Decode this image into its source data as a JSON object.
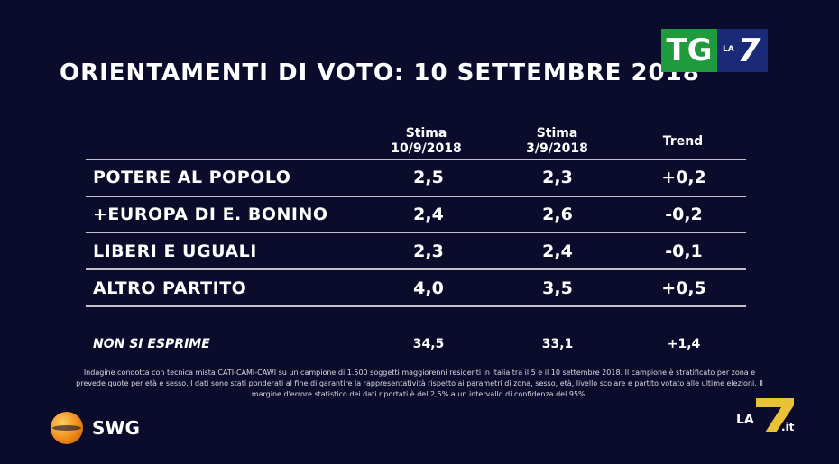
{
  "title": "ORIENTAMENTI DI VOTO: 10 SETTEMBRE 2018",
  "logo_top": {
    "tg": "TG",
    "la": "LA",
    "seven": "7"
  },
  "chart_data": {
    "type": "table",
    "columns": [
      {
        "line1": "Stima",
        "line2": "10/9/2018"
      },
      {
        "line1": "Stima",
        "line2": "3/9/2018"
      },
      {
        "line1": "",
        "line2": "Trend"
      }
    ],
    "rows": [
      {
        "label": "POTERE AL POPOLO",
        "stima1": "2,5",
        "stima2": "2,3",
        "trend": "+0,2"
      },
      {
        "label": "+EUROPA DI E. BONINO",
        "stima1": "2,4",
        "stima2": "2,6",
        "trend": "-0,2"
      },
      {
        "label": "LIBERI E UGUALI",
        "stima1": "2,3",
        "stima2": "2,4",
        "trend": "-0,1"
      },
      {
        "label": "ALTRO PARTITO",
        "stima1": "4,0",
        "stima2": "3,5",
        "trend": "+0,5"
      }
    ],
    "non_si_esprime": {
      "label": "NON SI ESPRIME",
      "stima1": "34,5",
      "stima2": "33,1",
      "trend": "+1,4"
    }
  },
  "note": "Indagine condotta con tecnica mista CATI-CAMI-CAWI su un campione di 1.500 soggetti maggiorenni residenti in Italia tra il 5 e il 10 settembre 2018. Il campione è stratificato per zona e prevede quote per età e sesso. I dati sono stati ponderati al fine di garantire la rappresentatività rispetto ai parametri di zona, sesso, età, livello scolare e partito votato alle ultime elezioni. Il margine d'errore statistico dei dati riportati è del 2,5% a un intervallo di confidenza del 95%.",
  "swg_label": "SWG",
  "la7_logo": {
    "la": "LA",
    "seven": "7",
    "it": ".it"
  },
  "colors": {
    "background": "#0b0c2c",
    "tg_green": "#1f9a3c",
    "tg_blue": "#1b2a78",
    "swg_orange": "#f08a1a",
    "la7_yellow": "#e8c33a"
  }
}
